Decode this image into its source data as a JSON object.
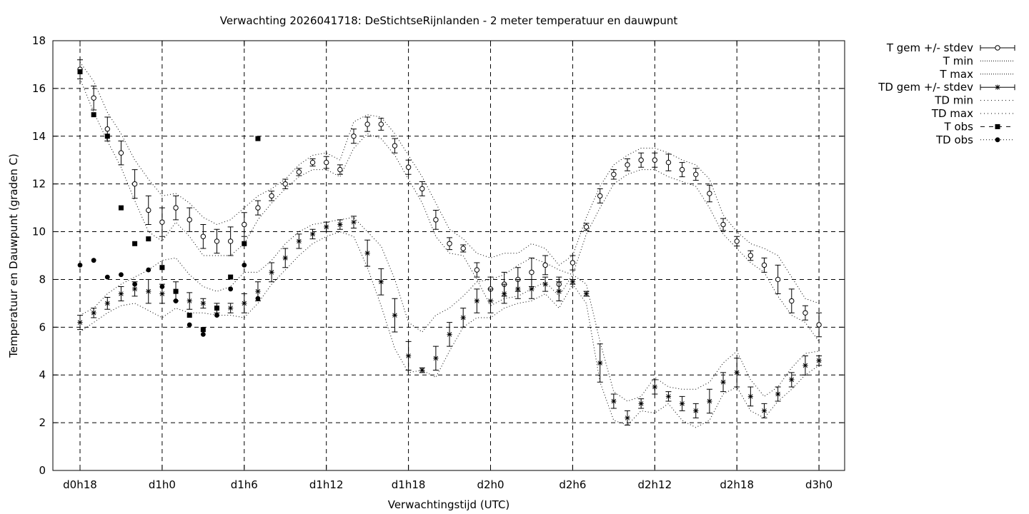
{
  "chart_data": {
    "type": "line",
    "title": "Verwachting 2026041718: DeStichtseRijnlanden - 2 meter temperatuur en dauwpunt",
    "xlabel": "Verwachtingstijd (UTC)",
    "ylabel": "Temperatuur en Dauwpunt (graden C)",
    "ylim": [
      0,
      18
    ],
    "yticks": [
      "0",
      "2",
      "4",
      "6",
      "8",
      "10",
      "12",
      "14",
      "16",
      "18"
    ],
    "xlim": [
      0,
      56
    ],
    "xticks": [
      {
        "x": 0,
        "label": "d0h18"
      },
      {
        "x": 6,
        "label": "d1h0"
      },
      {
        "x": 12,
        "label": "d1h6"
      },
      {
        "x": 18,
        "label": "d1h12"
      },
      {
        "x": 24,
        "label": "d1h18"
      },
      {
        "x": 30,
        "label": "d2h0"
      },
      {
        "x": 36,
        "label": "d2h6"
      },
      {
        "x": 42,
        "label": "d2h12"
      },
      {
        "x": 48,
        "label": "d2h18"
      },
      {
        "x": 54,
        "label": "d3h0"
      }
    ],
    "grid": true,
    "legend_position": "outside-right",
    "legend": [
      "T gem +/- stdev",
      "T min",
      "T max",
      "TD gem +/- stdev",
      "TD min",
      "TD max",
      "T obs",
      "TD obs"
    ],
    "series": [
      {
        "name": "T gem +/- stdev",
        "x": [
          0,
          1,
          2,
          3,
          4,
          5,
          6,
          7,
          8,
          9,
          10,
          11,
          12,
          13,
          14,
          15,
          16,
          17,
          18,
          19,
          20,
          21,
          22,
          23,
          24,
          25,
          26,
          27,
          28,
          29,
          30,
          31,
          32,
          33,
          34,
          35,
          36,
          37,
          38,
          39,
          40,
          41,
          42,
          43,
          44,
          45,
          46,
          47,
          48,
          49,
          50,
          51,
          52,
          53,
          54
        ],
        "y": [
          16.8,
          15.6,
          14.3,
          13.3,
          12.0,
          10.9,
          10.4,
          11.0,
          10.5,
          9.8,
          9.6,
          9.6,
          10.3,
          11.0,
          11.5,
          12.0,
          12.5,
          12.9,
          12.9,
          12.6,
          14.0,
          14.5,
          14.5,
          13.6,
          12.7,
          11.8,
          10.5,
          9.5,
          9.3,
          8.4,
          7.6,
          7.8,
          8.0,
          8.3,
          8.6,
          7.8,
          8.7,
          10.2,
          11.5,
          12.4,
          12.8,
          13.0,
          13.0,
          12.9,
          12.6,
          12.4,
          11.6,
          10.3,
          9.6,
          9.0,
          8.6,
          8.0,
          7.1,
          6.6,
          6.1
        ],
        "stdev": [
          0.4,
          0.5,
          0.5,
          0.5,
          0.6,
          0.6,
          0.6,
          0.5,
          0.5,
          0.5,
          0.5,
          0.6,
          0.5,
          0.3,
          0.2,
          0.2,
          0.15,
          0.15,
          0.25,
          0.2,
          0.3,
          0.3,
          0.25,
          0.3,
          0.3,
          0.3,
          0.4,
          0.25,
          0.15,
          0.3,
          0.5,
          0.5,
          0.5,
          0.6,
          0.4,
          0.3,
          0.3,
          0.15,
          0.3,
          0.2,
          0.25,
          0.3,
          0.3,
          0.35,
          0.3,
          0.25,
          0.35,
          0.25,
          0.2,
          0.2,
          0.3,
          0.6,
          0.5,
          0.3,
          0.5
        ],
        "color": "#000000"
      },
      {
        "name": "T min",
        "x": [
          0,
          1,
          2,
          3,
          4,
          5,
          6,
          7,
          8,
          9,
          10,
          11,
          12,
          13,
          14,
          15,
          16,
          17,
          18,
          19,
          20,
          21,
          22,
          23,
          24,
          25,
          26,
          27,
          28,
          29,
          30,
          31,
          32,
          33,
          34,
          35,
          36,
          37,
          38,
          39,
          40,
          41,
          42,
          43,
          44,
          45,
          46,
          47,
          48,
          49,
          50,
          51,
          52,
          53,
          54
        ],
        "y": [
          16.4,
          15.0,
          13.8,
          12.7,
          11.3,
          10.0,
          9.6,
          10.4,
          9.8,
          9.0,
          9.0,
          9.0,
          9.5,
          10.5,
          11.2,
          11.8,
          12.3,
          12.6,
          12.6,
          12.3,
          13.5,
          14.1,
          13.9,
          13.2,
          12.2,
          11.2,
          9.8,
          9.1,
          9.0,
          8.0,
          6.9,
          7.2,
          7.3,
          7.6,
          7.9,
          7.3,
          8.2,
          9.9,
          11.0,
          12.0,
          12.4,
          12.6,
          12.6,
          12.3,
          12.1,
          11.9,
          11.0,
          9.9,
          9.3,
          8.7,
          8.3,
          7.3,
          6.5,
          6.2,
          5.4
        ],
        "color": "#000000"
      },
      {
        "name": "T max",
        "x": [
          0,
          1,
          2,
          3,
          4,
          5,
          6,
          7,
          8,
          9,
          10,
          11,
          12,
          13,
          14,
          15,
          16,
          17,
          18,
          19,
          20,
          21,
          22,
          23,
          24,
          25,
          26,
          27,
          28,
          29,
          30,
          31,
          32,
          33,
          34,
          35,
          36,
          37,
          38,
          39,
          40,
          41,
          42,
          43,
          44,
          45,
          46,
          47,
          48,
          49,
          50,
          51,
          52,
          53,
          54
        ],
        "y": [
          17.1,
          16.3,
          15.0,
          14.1,
          13.0,
          12.2,
          11.5,
          11.6,
          11.2,
          10.6,
          10.3,
          10.5,
          11.0,
          11.5,
          11.8,
          12.2,
          12.8,
          13.2,
          13.3,
          13.0,
          14.6,
          14.9,
          14.8,
          14.1,
          13.2,
          12.3,
          11.2,
          10.1,
          9.7,
          9.1,
          8.9,
          9.1,
          9.1,
          9.5,
          9.3,
          8.6,
          9.0,
          10.6,
          11.9,
          12.8,
          13.2,
          13.5,
          13.5,
          13.3,
          13.0,
          12.8,
          12.2,
          10.7,
          10.0,
          9.5,
          9.3,
          9.0,
          8.1,
          7.2,
          7.0
        ],
        "color": "#000000"
      },
      {
        "name": "TD gem +/- stdev",
        "x": [
          0,
          1,
          2,
          3,
          4,
          5,
          6,
          7,
          8,
          9,
          10,
          11,
          12,
          13,
          14,
          15,
          16,
          17,
          18,
          19,
          20,
          21,
          22,
          23,
          24,
          25,
          26,
          27,
          28,
          29,
          30,
          31,
          32,
          33,
          34,
          35,
          36,
          37,
          38,
          39,
          40,
          41,
          42,
          43,
          44,
          45,
          46,
          47,
          48,
          49,
          50,
          51,
          52,
          53,
          54
        ],
        "y": [
          6.2,
          6.6,
          7.0,
          7.4,
          7.6,
          7.5,
          7.4,
          7.5,
          7.1,
          7.0,
          6.8,
          6.8,
          7.0,
          7.5,
          8.3,
          8.9,
          9.6,
          9.9,
          10.2,
          10.3,
          10.4,
          9.1,
          7.9,
          6.5,
          4.8,
          4.2,
          4.7,
          5.7,
          6.4,
          7.1,
          7.1,
          7.4,
          7.6,
          7.6,
          7.8,
          7.5,
          7.9,
          7.4,
          4.5,
          2.9,
          2.2,
          2.8,
          3.5,
          3.1,
          2.8,
          2.5,
          2.9,
          3.7,
          4.1,
          3.1,
          2.5,
          3.2,
          3.8,
          4.4,
          4.6
        ],
        "stdev": [
          0.3,
          0.2,
          0.25,
          0.3,
          0.3,
          0.5,
          0.4,
          0.4,
          0.35,
          0.2,
          0.2,
          0.2,
          0.4,
          0.4,
          0.4,
          0.4,
          0.3,
          0.2,
          0.2,
          0.2,
          0.25,
          0.55,
          0.55,
          0.7,
          0.6,
          0.1,
          0.5,
          0.5,
          0.4,
          0.5,
          0.5,
          0.4,
          0.4,
          0.4,
          0.3,
          0.4,
          0.1,
          0.1,
          0.8,
          0.3,
          0.3,
          0.2,
          0.3,
          0.2,
          0.3,
          0.3,
          0.5,
          0.4,
          0.6,
          0.4,
          0.3,
          0.3,
          0.3,
          0.4,
          0.2
        ],
        "color": "#000000"
      },
      {
        "name": "TD min",
        "x": [
          0,
          1,
          2,
          3,
          4,
          5,
          6,
          7,
          8,
          9,
          10,
          11,
          12,
          13,
          14,
          15,
          16,
          17,
          18,
          19,
          20,
          21,
          22,
          23,
          24,
          25,
          26,
          27,
          28,
          29,
          30,
          31,
          32,
          33,
          34,
          35,
          36,
          37,
          38,
          39,
          40,
          41,
          42,
          43,
          44,
          45,
          46,
          47,
          48,
          49,
          50,
          51,
          52,
          53,
          54
        ],
        "y": [
          5.8,
          6.2,
          6.6,
          6.9,
          7.0,
          6.7,
          6.4,
          6.8,
          6.6,
          6.6,
          6.5,
          6.5,
          6.4,
          7.0,
          7.8,
          8.4,
          9.0,
          9.5,
          9.8,
          10.0,
          9.8,
          8.5,
          6.9,
          5.1,
          4.1,
          4.2,
          3.9,
          5.0,
          6.0,
          6.4,
          6.4,
          6.8,
          7.0,
          7.1,
          7.4,
          6.8,
          7.8,
          7.0,
          3.7,
          2.1,
          1.9,
          2.5,
          2.4,
          2.8,
          2.1,
          1.8,
          2.1,
          3.2,
          3.5,
          2.5,
          2.2,
          2.9,
          3.4,
          4.0,
          4.4
        ],
        "color": "#000000"
      },
      {
        "name": "TD max",
        "x": [
          0,
          1,
          2,
          3,
          4,
          5,
          6,
          7,
          8,
          9,
          10,
          11,
          12,
          13,
          14,
          15,
          16,
          17,
          18,
          19,
          20,
          21,
          22,
          23,
          24,
          25,
          26,
          27,
          28,
          29,
          30,
          31,
          32,
          33,
          34,
          35,
          36,
          37,
          38,
          39,
          40,
          41,
          42,
          43,
          44,
          45,
          46,
          47,
          48,
          49,
          50,
          51,
          52,
          53,
          54
        ],
        "y": [
          6.5,
          6.8,
          7.4,
          7.8,
          8.1,
          8.4,
          8.8,
          8.9,
          8.2,
          7.7,
          7.5,
          7.7,
          8.3,
          8.3,
          8.8,
          9.5,
          10.0,
          10.3,
          10.4,
          10.5,
          10.6,
          10.0,
          9.4,
          8.0,
          6.2,
          5.8,
          6.5,
          6.8,
          7.3,
          7.9,
          8.0,
          8.2,
          8.6,
          8.9,
          8.7,
          8.4,
          8.2,
          7.8,
          5.4,
          3.3,
          2.9,
          3.1,
          3.9,
          3.5,
          3.4,
          3.4,
          3.7,
          4.5,
          5.0,
          3.8,
          3.1,
          3.5,
          4.3,
          4.9,
          5.0
        ],
        "color": "#000000"
      },
      {
        "name": "T obs",
        "x": [
          0,
          1,
          2,
          3,
          4,
          5,
          6,
          7,
          8,
          9,
          10,
          11,
          12,
          13
        ],
        "y": [
          16.7,
          14.9,
          14.0,
          11.0,
          9.5,
          9.7,
          8.5,
          7.5,
          6.5,
          5.9,
          6.8,
          8.1,
          9.5,
          13.9
        ],
        "color": "#000000"
      },
      {
        "name": "TD obs",
        "x": [
          0,
          1,
          2,
          3,
          4,
          5,
          6,
          7,
          8,
          9,
          10,
          11,
          12,
          13
        ],
        "y": [
          8.6,
          8.8,
          8.1,
          8.2,
          7.8,
          8.4,
          7.7,
          7.1,
          6.1,
          5.7,
          6.5,
          7.6,
          8.6,
          7.2
        ],
        "color": "#000000"
      }
    ]
  }
}
